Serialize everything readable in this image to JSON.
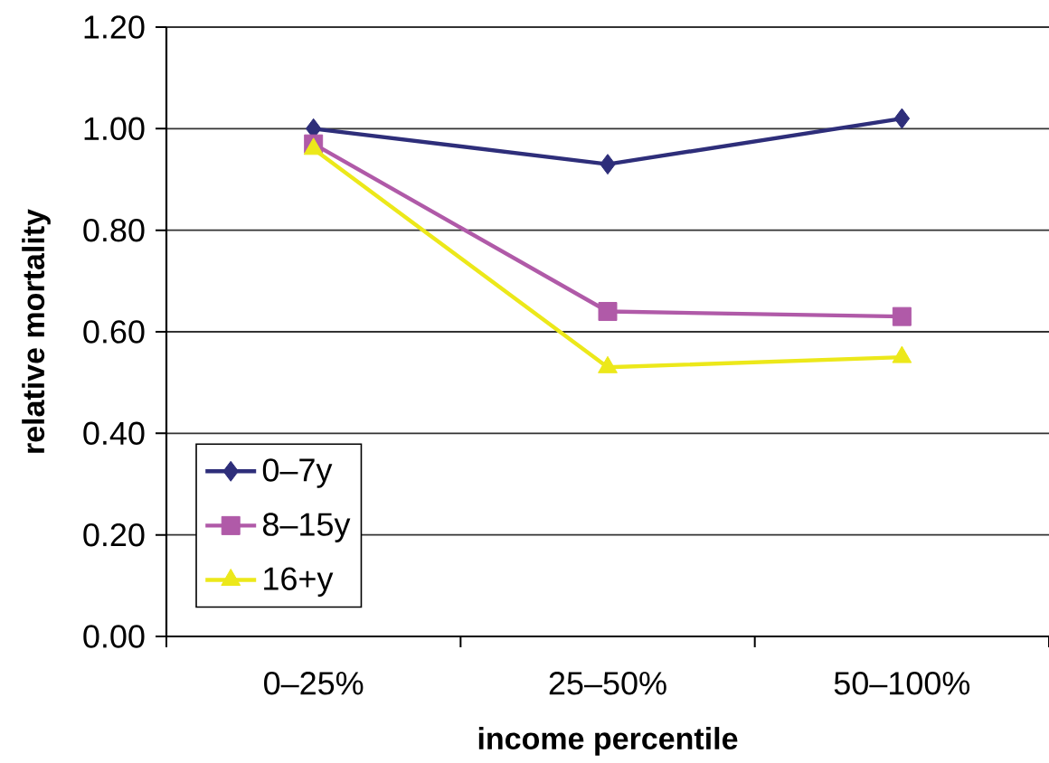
{
  "chart_data": {
    "type": "line",
    "xlabel": "income percentile",
    "ylabel": "relative mortality",
    "categories": [
      "0–25%",
      "25–50%",
      "50–100%"
    ],
    "series": [
      {
        "name": "0–7y",
        "color": "#2e2e7a",
        "marker": "diamond",
        "values": [
          1.0,
          0.93,
          1.02
        ]
      },
      {
        "name": "8–15y",
        "color": "#b05aa8",
        "marker": "square",
        "values": [
          0.97,
          0.64,
          0.63
        ]
      },
      {
        "name": "16+y",
        "color": "#ece81a",
        "marker": "triangle",
        "values": [
          0.96,
          0.53,
          0.55
        ]
      }
    ],
    "ylim": [
      0,
      1.2
    ],
    "yticks": [
      {
        "value": 0,
        "label": "0.00"
      },
      {
        "value": 0.2,
        "label": "0.20"
      },
      {
        "value": 0.4,
        "label": "0.40"
      },
      {
        "value": 0.6,
        "label": "0.60"
      },
      {
        "value": 0.8,
        "label": "0.80"
      },
      {
        "value": 1.0,
        "label": "1.00"
      },
      {
        "value": 1.2,
        "label": "1.20"
      }
    ],
    "grid": "y",
    "legend": "bottom left"
  }
}
